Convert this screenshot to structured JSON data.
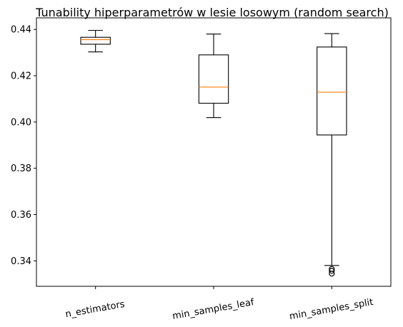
{
  "chart_data": {
    "type": "box",
    "title": "Tunability hiperparametrów w lesie losowym (random search)",
    "xlabel": "",
    "ylabel": "",
    "ylim": [
      0.329,
      0.445
    ],
    "y_ticks": [
      0.34,
      0.36,
      0.38,
      0.4,
      0.42,
      0.44
    ],
    "y_tick_labels": [
      "0.34",
      "0.36",
      "0.38",
      "0.40",
      "0.42",
      "0.44"
    ],
    "categories": [
      "n_estimators",
      "min_samples_leaf",
      "min_samples_split"
    ],
    "boxes": [
      {
        "whisker_low": 0.4303,
        "q1": 0.4336,
        "median": 0.4356,
        "q3": 0.4366,
        "whisker_high": 0.4396,
        "fliers": []
      },
      {
        "whisker_low": 0.4019,
        "q1": 0.4081,
        "median": 0.4151,
        "q3": 0.429,
        "whisker_high": 0.438,
        "fliers": []
      },
      {
        "whisker_low": 0.338,
        "q1": 0.3944,
        "median": 0.4129,
        "q3": 0.4324,
        "whisker_high": 0.4382,
        "fliers": [
          0.3365,
          0.3357,
          0.3345
        ]
      }
    ],
    "colors": {
      "median": "#ff7f0e",
      "box": "#000000"
    },
    "grid": false
  }
}
